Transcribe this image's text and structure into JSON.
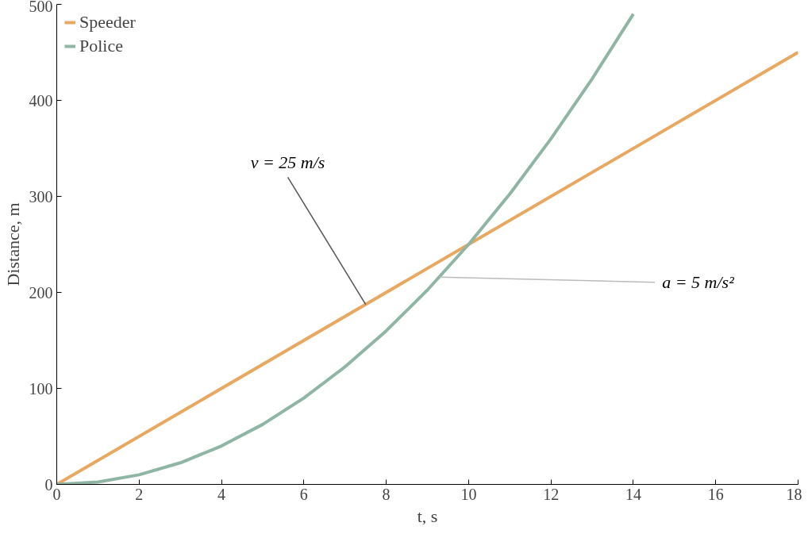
{
  "chart_data": {
    "type": "line",
    "xlabel": "t, s",
    "ylabel": "Distance, m",
    "series": [
      {
        "name": "Speeder",
        "color": "#e8a860",
        "x": [
          0,
          18
        ],
        "values": [
          0,
          450
        ]
      },
      {
        "name": "Police",
        "color": "#8fb5a5",
        "x": [
          0,
          1,
          2,
          3,
          4,
          5,
          6,
          7,
          8,
          9,
          10,
          11,
          12,
          13,
          14
        ],
        "values": [
          0,
          2.5,
          10,
          22.5,
          40,
          62.5,
          90,
          122.5,
          160,
          202.5,
          250,
          302.5,
          360,
          422.5,
          490
        ]
      }
    ],
    "annotations": [
      {
        "text": "v = 25 m/s",
        "x": 7.5,
        "y": 187.5
      },
      {
        "text": "a = 5 m/s²",
        "x": 9.3,
        "y": 216
      }
    ],
    "xlim": [
      0,
      18
    ],
    "xticks": [
      0,
      2,
      4,
      6,
      8,
      10,
      12,
      14,
      16,
      18
    ],
    "ylim": [
      0,
      500
    ],
    "yticks": [
      0,
      100,
      200,
      300,
      400,
      500
    ],
    "grid": false,
    "legend": "top left",
    "marker": "none",
    "line_style": "solid"
  }
}
